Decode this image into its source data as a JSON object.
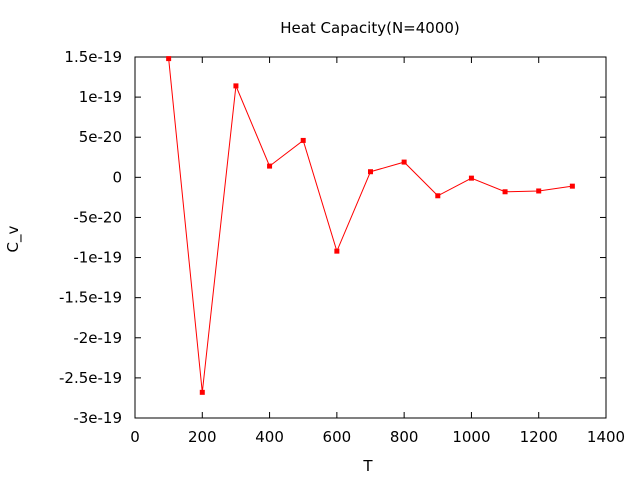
{
  "chart_data": {
    "type": "line",
    "title": "Heat Capacity(N=4000)",
    "xlabel": "T",
    "ylabel": "C_v",
    "xlim": [
      0,
      1400
    ],
    "ylim": [
      -3e-19,
      1.5e-19
    ],
    "x_ticks": [
      0,
      200,
      400,
      600,
      800,
      1000,
      1200,
      1400
    ],
    "x_tick_labels": [
      "0",
      "200",
      "400",
      "600",
      "800",
      "1000",
      "1200",
      "1400"
    ],
    "y_ticks": [
      1.5e-19,
      1e-19,
      5e-20,
      0,
      -5e-20,
      -1e-19,
      -1.5e-19,
      -2e-19,
      -2.5e-19,
      -3e-19
    ],
    "y_tick_labels": [
      "1.5e-19",
      "1e-19",
      "5e-20",
      "0",
      "-5e-20",
      "-1e-19",
      "-1.5e-19",
      "-2e-19",
      "-2.5e-19",
      "-3e-19"
    ],
    "grid": false,
    "legend": "none",
    "series": [
      {
        "color": "#ff0000",
        "marker": "filled-square",
        "x": [
          100,
          200,
          300,
          400,
          500,
          600,
          700,
          800,
          900,
          1000,
          1100,
          1200,
          1300
        ],
        "y": [
          1.48e-19,
          -2.68e-19,
          1.14e-19,
          1.4e-20,
          4.6e-20,
          -9.2e-20,
          7e-21,
          1.9e-20,
          -2.3e-20,
          -1e-21,
          -1.8e-20,
          -1.7e-20,
          -1.1e-20
        ]
      }
    ]
  }
}
